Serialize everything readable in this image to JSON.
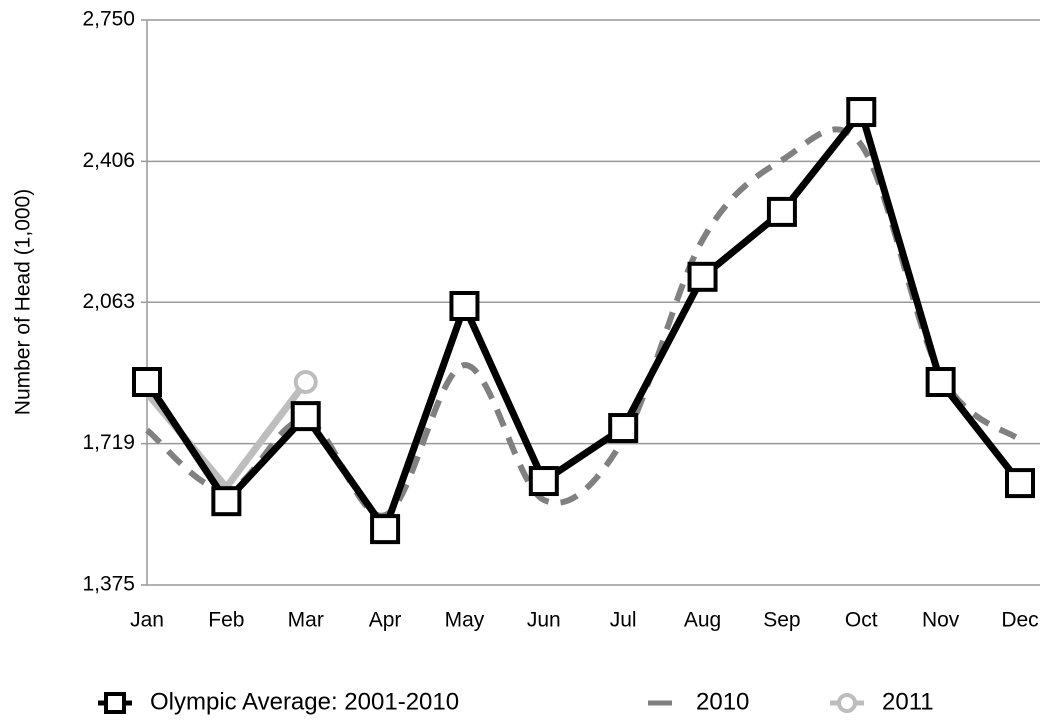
{
  "chart_data": {
    "type": "line",
    "y_label": "Number of Head (1,000)",
    "categories": [
      "Jan",
      "Feb",
      "Mar",
      "Apr",
      "May",
      "Jun",
      "Jul",
      "Aug",
      "Sep",
      "Oct",
      "Nov",
      "Dec"
    ],
    "series": [
      {
        "name": "Olympic Average: 2001-2010",
        "color": "#000000",
        "marker": "square",
        "line_style": "solid",
        "smooth": false,
        "values": [
          1869,
          1579,
          1786,
          1511,
          2054,
          1628,
          1757,
          2125,
          2283,
          2526,
          1869,
          1623
        ]
      },
      {
        "name": "2010",
        "color": "#808080",
        "marker": "none",
        "line_style": "dashed",
        "smooth": true,
        "values": [
          1752,
          1606,
          1776,
          1545,
          1910,
          1582,
          1728,
          2215,
          2409,
          2446,
          1886,
          1728
        ]
      },
      {
        "name": "2011",
        "color": "#bdbdbd",
        "marker": "circle",
        "line_style": "solid",
        "smooth": false,
        "values": [
          1842,
          1613,
          1869,
          null,
          null,
          null,
          null,
          null,
          null,
          null,
          null,
          null
        ]
      }
    ],
    "ylim": [
      1375,
      2750
    ],
    "yticks": [
      {
        "value": 1375,
        "label": "1,375"
      },
      {
        "value": 1719,
        "label": "1,719"
      },
      {
        "value": 2063,
        "label": "2,063"
      },
      {
        "value": 2406,
        "label": "2,406"
      },
      {
        "value": 2750,
        "label": "2,750"
      }
    ],
    "grid": true,
    "legend": "bottom"
  }
}
